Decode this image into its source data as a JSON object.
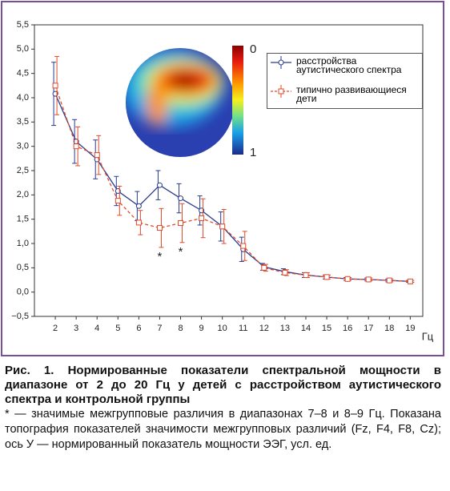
{
  "chart_data": {
    "type": "line",
    "x": [
      2,
      3,
      4,
      5,
      6,
      7,
      8,
      9,
      10,
      11,
      12,
      13,
      14,
      15,
      16,
      17,
      18,
      19
    ],
    "xlim": [
      1,
      19.6
    ],
    "xticks": [
      2,
      3,
      4,
      5,
      6,
      7,
      8,
      9,
      10,
      11,
      12,
      13,
      14,
      15,
      16,
      17,
      18,
      19
    ],
    "xlabel": "Гц",
    "ylim": [
      -0.5,
      5.5
    ],
    "yticks": [
      {
        "value": -0.5,
        "label": "−0,5"
      },
      {
        "value": 0,
        "label": "0,0"
      },
      {
        "value": 0.5,
        "label": "0,5"
      },
      {
        "value": 1,
        "label": "1,0"
      },
      {
        "value": 1.5,
        "label": "1,5"
      },
      {
        "value": 2,
        "label": "2,0"
      },
      {
        "value": 2.5,
        "label": "2,5"
      },
      {
        "value": 3,
        "label": "3,0"
      },
      {
        "value": 3.5,
        "label": "3,5"
      },
      {
        "value": 4,
        "label": "4,0"
      },
      {
        "value": 4.5,
        "label": "4,5"
      },
      {
        "value": 5,
        "label": "5,0"
      },
      {
        "value": 5.5,
        "label": "5,5"
      }
    ],
    "legend": "upper right",
    "series": [
      {
        "name": "расстройства аутистического спектра",
        "color": "#2a3a8c",
        "marker": "circle",
        "dashed": false,
        "values": [
          4.08,
          3.1,
          2.73,
          2.08,
          1.77,
          2.2,
          1.93,
          1.68,
          1.35,
          0.88,
          0.52,
          0.42,
          0.35,
          0.31,
          0.27,
          0.26,
          0.24,
          0.22
        ],
        "errors": [
          0.65,
          0.45,
          0.4,
          0.3,
          0.3,
          0.3,
          0.3,
          0.3,
          0.3,
          0.25,
          0.07,
          0.06,
          0.05,
          0.04,
          0.03,
          0.03,
          0.03,
          0.02
        ]
      },
      {
        "name": "типично развивающиеся дети",
        "color": "#e04a2a",
        "marker": "square",
        "dashed": true,
        "values": [
          4.25,
          3.0,
          2.82,
          1.88,
          1.43,
          1.32,
          1.42,
          1.52,
          1.35,
          0.95,
          0.5,
          0.4,
          0.35,
          0.31,
          0.27,
          0.26,
          0.24,
          0.22
        ],
        "errors": [
          0.6,
          0.4,
          0.4,
          0.3,
          0.25,
          0.4,
          0.4,
          0.4,
          0.35,
          0.3,
          0.07,
          0.06,
          0.05,
          0.04,
          0.03,
          0.03,
          0.03,
          0.02
        ]
      }
    ],
    "annotations": [
      {
        "text": "*",
        "x": 7
      },
      {
        "text": "*",
        "x": 8
      }
    ],
    "colorbar_labels": [
      "0",
      "1"
    ]
  },
  "caption": {
    "title": "Рис. 1. Нормированные показатели спектральной мощности в диапазоне от 2 до 20 Гц у детей с расстройством аутистического спектра и контрольной группы",
    "note": "* — значимые межгрупповые различия в диапазонах 7–8 и 8–9 Гц. Показана топография показателей значимости межгрупповых различий (Fz, F4, F8, Cz); ось У — нормированный показатель мощности ЭЭГ, усл. ед."
  }
}
